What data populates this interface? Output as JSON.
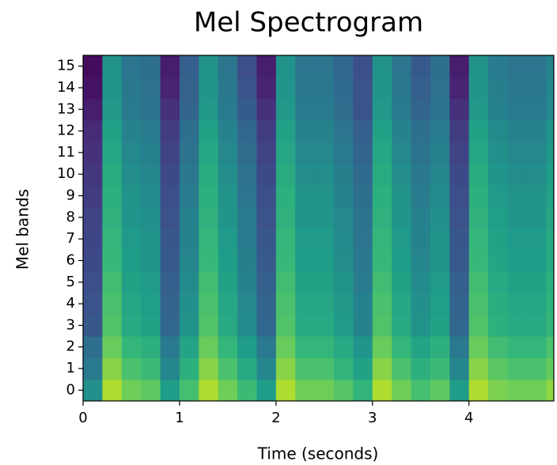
{
  "chart_data": {
    "type": "heatmap",
    "title": "Mel Spectrogram",
    "title_color": "#c00000",
    "xlabel": "Time (seconds)",
    "ylabel": "Mel bands",
    "colormap": "viridis",
    "zlim": [
      0,
      1
    ],
    "xlim": [
      0,
      4.88
    ],
    "xticks": [
      0,
      1,
      2,
      3,
      4
    ],
    "ylim": [
      -0.5,
      15.5
    ],
    "yticks": [
      0,
      1,
      2,
      3,
      4,
      5,
      6,
      7,
      8,
      9,
      10,
      11,
      12,
      13,
      14,
      15
    ],
    "x": [
      0,
      0.2,
      0.4,
      0.6,
      0.8,
      1.0,
      1.2,
      1.4,
      1.6,
      1.8,
      2.0,
      2.2,
      2.4,
      2.6,
      2.8,
      3.0,
      3.2,
      3.4,
      3.6,
      3.8,
      4.0,
      4.2,
      4.4,
      4.6,
      4.8
    ],
    "bands": [
      0,
      1,
      2,
      3,
      4,
      5,
      6,
      7,
      8,
      9,
      10,
      11,
      12,
      13,
      14,
      15
    ],
    "z": [
      [
        0.5,
        0.88,
        0.78,
        0.75,
        0.55,
        0.7,
        0.88,
        0.78,
        0.68,
        0.55,
        0.88,
        0.78,
        0.78,
        0.73,
        0.65,
        0.88,
        0.78,
        0.7,
        0.75,
        0.55,
        0.88,
        0.8,
        0.78,
        0.78,
        0.83
      ],
      [
        0.41,
        0.82,
        0.71,
        0.68,
        0.46,
        0.63,
        0.82,
        0.71,
        0.6,
        0.46,
        0.82,
        0.71,
        0.71,
        0.65,
        0.57,
        0.82,
        0.71,
        0.63,
        0.68,
        0.46,
        0.82,
        0.74,
        0.71,
        0.71,
        0.76
      ],
      [
        0.36,
        0.77,
        0.66,
        0.63,
        0.41,
        0.58,
        0.77,
        0.66,
        0.55,
        0.41,
        0.77,
        0.66,
        0.66,
        0.6,
        0.52,
        0.77,
        0.66,
        0.58,
        0.63,
        0.41,
        0.77,
        0.69,
        0.66,
        0.66,
        0.71
      ],
      [
        0.27,
        0.72,
        0.6,
        0.57,
        0.33,
        0.51,
        0.72,
        0.6,
        0.48,
        0.33,
        0.72,
        0.6,
        0.6,
        0.54,
        0.45,
        0.72,
        0.6,
        0.51,
        0.57,
        0.33,
        0.72,
        0.63,
        0.6,
        0.6,
        0.66
      ],
      [
        0.26,
        0.71,
        0.59,
        0.56,
        0.32,
        0.5,
        0.71,
        0.59,
        0.47,
        0.32,
        0.71,
        0.59,
        0.59,
        0.53,
        0.44,
        0.71,
        0.59,
        0.5,
        0.56,
        0.32,
        0.71,
        0.62,
        0.59,
        0.59,
        0.65
      ],
      [
        0.24,
        0.69,
        0.57,
        0.54,
        0.3,
        0.48,
        0.69,
        0.57,
        0.45,
        0.3,
        0.69,
        0.57,
        0.57,
        0.51,
        0.42,
        0.69,
        0.57,
        0.48,
        0.54,
        0.3,
        0.69,
        0.6,
        0.57,
        0.57,
        0.63
      ],
      [
        0.22,
        0.67,
        0.55,
        0.52,
        0.28,
        0.46,
        0.67,
        0.55,
        0.43,
        0.28,
        0.67,
        0.55,
        0.55,
        0.49,
        0.4,
        0.67,
        0.55,
        0.46,
        0.52,
        0.28,
        0.67,
        0.58,
        0.55,
        0.55,
        0.61
      ],
      [
        0.21,
        0.66,
        0.54,
        0.51,
        0.27,
        0.45,
        0.66,
        0.54,
        0.42,
        0.27,
        0.66,
        0.54,
        0.54,
        0.48,
        0.39,
        0.66,
        0.54,
        0.45,
        0.51,
        0.27,
        0.66,
        0.57,
        0.54,
        0.54,
        0.6
      ],
      [
        0.2,
        0.64,
        0.52,
        0.5,
        0.25,
        0.44,
        0.64,
        0.52,
        0.41,
        0.25,
        0.64,
        0.52,
        0.52,
        0.47,
        0.38,
        0.64,
        0.52,
        0.44,
        0.5,
        0.25,
        0.64,
        0.56,
        0.52,
        0.52,
        0.59
      ],
      [
        0.18,
        0.63,
        0.51,
        0.48,
        0.24,
        0.42,
        0.63,
        0.51,
        0.39,
        0.24,
        0.63,
        0.51,
        0.51,
        0.45,
        0.36,
        0.63,
        0.51,
        0.42,
        0.48,
        0.24,
        0.63,
        0.54,
        0.51,
        0.51,
        0.57
      ],
      [
        0.16,
        0.61,
        0.49,
        0.46,
        0.22,
        0.4,
        0.61,
        0.49,
        0.37,
        0.22,
        0.61,
        0.49,
        0.49,
        0.43,
        0.34,
        0.61,
        0.49,
        0.4,
        0.46,
        0.22,
        0.61,
        0.52,
        0.49,
        0.49,
        0.55
      ],
      [
        0.14,
        0.59,
        0.47,
        0.44,
        0.2,
        0.38,
        0.59,
        0.47,
        0.35,
        0.2,
        0.59,
        0.47,
        0.47,
        0.41,
        0.32,
        0.59,
        0.47,
        0.38,
        0.44,
        0.2,
        0.59,
        0.5,
        0.47,
        0.47,
        0.53
      ],
      [
        0.12,
        0.57,
        0.45,
        0.42,
        0.18,
        0.36,
        0.57,
        0.45,
        0.33,
        0.18,
        0.57,
        0.45,
        0.45,
        0.39,
        0.3,
        0.57,
        0.45,
        0.36,
        0.42,
        0.18,
        0.57,
        0.48,
        0.45,
        0.45,
        0.51
      ],
      [
        0.08,
        0.53,
        0.41,
        0.38,
        0.14,
        0.32,
        0.53,
        0.41,
        0.29,
        0.14,
        0.53,
        0.41,
        0.41,
        0.35,
        0.26,
        0.53,
        0.41,
        0.32,
        0.38,
        0.14,
        0.53,
        0.44,
        0.41,
        0.41,
        0.47
      ],
      [
        0.05,
        0.52,
        0.4,
        0.37,
        0.1,
        0.31,
        0.52,
        0.4,
        0.26,
        0.1,
        0.52,
        0.4,
        0.4,
        0.34,
        0.25,
        0.52,
        0.4,
        0.3,
        0.37,
        0.1,
        0.52,
        0.43,
        0.4,
        0.4,
        0.46
      ],
      [
        0.03,
        0.51,
        0.39,
        0.36,
        0.08,
        0.3,
        0.51,
        0.39,
        0.24,
        0.08,
        0.51,
        0.39,
        0.39,
        0.33,
        0.24,
        0.51,
        0.39,
        0.28,
        0.36,
        0.08,
        0.51,
        0.42,
        0.39,
        0.39,
        0.45
      ]
    ]
  }
}
